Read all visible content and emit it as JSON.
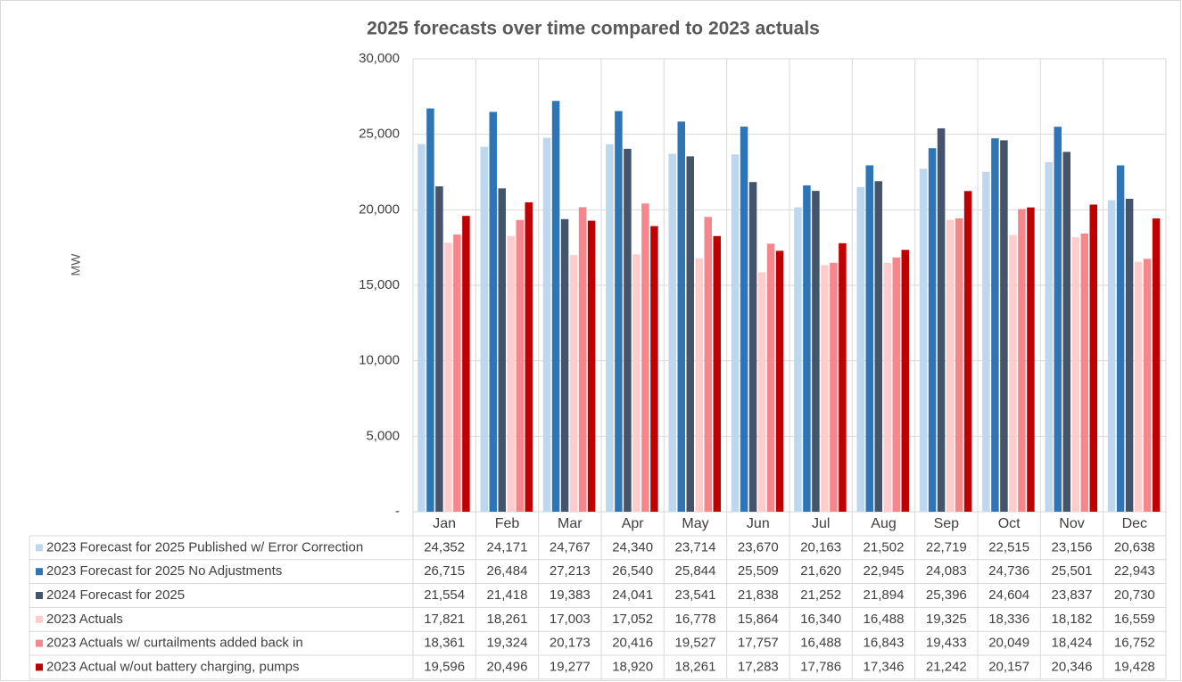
{
  "chart_data": {
    "type": "bar",
    "title": "2025 forecasts over time compared to 2023 actuals",
    "y_label": "MW",
    "categories": [
      "Jan",
      "Feb",
      "Mar",
      "Apr",
      "May",
      "Jun",
      "Jul",
      "Aug",
      "Sep",
      "Oct",
      "Nov",
      "Dec"
    ],
    "ylim": [
      0,
      30000
    ],
    "yticks": [
      {
        "value": 0,
        "label": "-"
      },
      {
        "value": 5000,
        "label": "5,000"
      },
      {
        "value": 10000,
        "label": "10,000"
      },
      {
        "value": 15000,
        "label": "15,000"
      },
      {
        "value": 20000,
        "label": "20,000"
      },
      {
        "value": 25000,
        "label": "25,000"
      },
      {
        "value": 30000,
        "label": "30,000"
      }
    ],
    "grid": true,
    "series": [
      {
        "name": "2023 Forecast for 2025 Published w/ Error Correction",
        "color": "#bdd7ee",
        "values": [
          24352,
          24171,
          24767,
          24340,
          23714,
          23670,
          20163,
          21502,
          22719,
          22515,
          23156,
          20638
        ],
        "value_labels": [
          "24,352",
          "24,171",
          "24,767",
          "24,340",
          "23,714",
          "23,670",
          "20,163",
          "21,502",
          "22,719",
          "22,515",
          "23,156",
          "20,638"
        ]
      },
      {
        "name": "2023 Forecast for 2025 No Adjustments",
        "color": "#2e75b6",
        "values": [
          26715,
          26484,
          27213,
          26540,
          25844,
          25509,
          21620,
          22945,
          24083,
          24736,
          25501,
          22943
        ],
        "value_labels": [
          "26,715",
          "26,484",
          "27,213",
          "26,540",
          "25,844",
          "25,509",
          "21,620",
          "22,945",
          "24,083",
          "24,736",
          "25,501",
          "22,943"
        ]
      },
      {
        "name": "2024 Forecast for 2025",
        "color": "#44546a",
        "values": [
          21554,
          21418,
          19383,
          24041,
          23541,
          21838,
          21252,
          21894,
          25396,
          24604,
          23837,
          20730
        ],
        "value_labels": [
          "21,554",
          "21,418",
          "19,383",
          "24,041",
          "23,541",
          "21,838",
          "21,252",
          "21,894",
          "25,396",
          "24,604",
          "23,837",
          "20,730"
        ]
      },
      {
        "name": "2023 Actuals",
        "color": "#ffcccc",
        "values": [
          17821,
          18261,
          17003,
          17052,
          16778,
          15864,
          16340,
          16488,
          19325,
          18336,
          18182,
          16559
        ],
        "value_labels": [
          "17,821",
          "18,261",
          "17,003",
          "17,052",
          "16,778",
          "15,864",
          "16,340",
          "16,488",
          "19,325",
          "18,336",
          "18,182",
          "16,559"
        ]
      },
      {
        "name": "2023 Actuals w/ curtailments added back in",
        "color": "#f4868c",
        "values": [
          18361,
          19324,
          20173,
          20416,
          19527,
          17757,
          16488,
          16843,
          19433,
          20049,
          18424,
          16752
        ],
        "value_labels": [
          "18,361",
          "19,324",
          "20,173",
          "20,416",
          "19,527",
          "17,757",
          "16,488",
          "16,843",
          "19,433",
          "20,049",
          "18,424",
          "16,752"
        ]
      },
      {
        "name": "2023 Actual w/out battery charging, pumps",
        "color": "#c00000",
        "values": [
          19596,
          20496,
          19277,
          18920,
          18261,
          17283,
          17786,
          17346,
          21242,
          20157,
          20346,
          19428
        ],
        "value_labels": [
          "19,596",
          "20,496",
          "19,277",
          "18,920",
          "18,261",
          "17,283",
          "17,786",
          "17,346",
          "21,242",
          "20,157",
          "20,346",
          "19,428"
        ]
      }
    ]
  }
}
